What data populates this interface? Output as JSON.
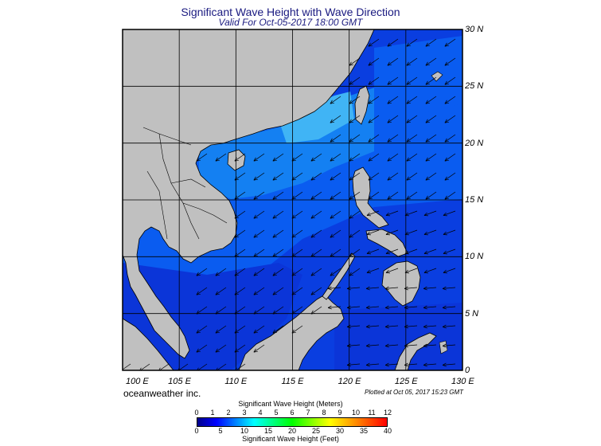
{
  "title": "Significant Wave Height with Wave Direction",
  "subtitle": "Valid For Oct-05-2017 18:00 GMT",
  "lat_labels": [
    "30 N",
    "25 N",
    "20 N",
    "15 N",
    "10 N",
    "5 N",
    "0"
  ],
  "lon_labels": [
    "100 E",
    "105 E",
    "110 E",
    "115 E",
    "120 E",
    "125 E",
    "130 E"
  ],
  "credit": "oceanweather inc.",
  "plotted": "Plotted at Oct 05, 2017 15:23 GMT",
  "colorbar": {
    "meters_title": "Significant Wave Height (Meters)",
    "meters_ticks": [
      "0",
      "1",
      "2",
      "3",
      "4",
      "5",
      "6",
      "7",
      "8",
      "9",
      "10",
      "11",
      "12"
    ],
    "feet_ticks": [
      "0",
      "5",
      "10",
      "15",
      "20",
      "25",
      "30",
      "35",
      "40"
    ],
    "feet_title": "Significant Wave Height (Feet)",
    "colors": [
      "#00008b",
      "#0000ff",
      "#0080ff",
      "#00ffff",
      "#00ff80",
      "#00ff00",
      "#80ff00",
      "#ffff00",
      "#ffaa00",
      "#ff5500",
      "#ff0000"
    ]
  },
  "map": {
    "land_color": "#c0c0c0",
    "sea_color": "#0a46e6",
    "extent": {
      "lon": [
        100,
        130
      ],
      "lat": [
        0,
        30
      ]
    }
  }
}
